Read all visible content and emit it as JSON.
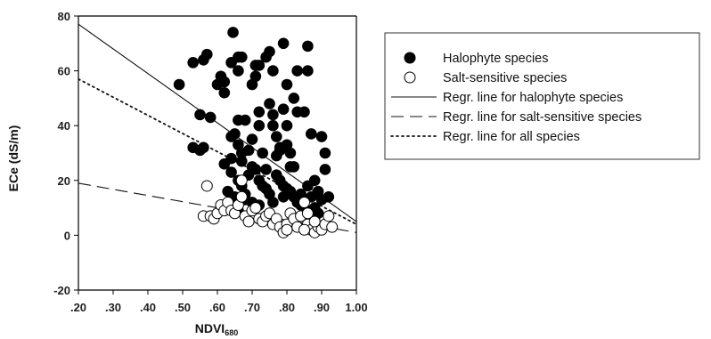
{
  "chart_data": {
    "type": "scatter",
    "xlabel": "NDVI",
    "xlabel_sub": "680",
    "ylabel": "ECe (dS/m)",
    "xlim": [
      0.2,
      1.0
    ],
    "ylim": [
      -20,
      80
    ],
    "x_ticks": [
      0.2,
      0.3,
      0.4,
      0.5,
      0.6,
      0.7,
      0.8,
      0.9,
      1.0
    ],
    "x_tick_labels": [
      ".20",
      ".30",
      ".40",
      ".50",
      ".60",
      ".70",
      ".80",
      ".90",
      "1.00"
    ],
    "y_ticks": [
      -20,
      0,
      20,
      40,
      60,
      80
    ],
    "y_tick_labels": [
      "-20",
      "0",
      "20",
      "40",
      "60",
      "80"
    ],
    "grid": false,
    "legend_position": "right",
    "legend": [
      {
        "label": "Halophyte species",
        "marker": "filled-circle"
      },
      {
        "label": "Salt-sensitive species",
        "marker": "open-circle"
      },
      {
        "label": "Regr. line for halophyte species",
        "marker": "solid-line"
      },
      {
        "label": "Regr. line for salt-sensitive species",
        "marker": "dashed-line"
      },
      {
        "label": "Regr. line for all species",
        "marker": "dotted-line"
      }
    ],
    "series": [
      {
        "name": "Halophyte species",
        "color": "#000000",
        "points": [
          [
            0.49,
            55
          ],
          [
            0.53,
            32
          ],
          [
            0.53,
            63
          ],
          [
            0.55,
            31
          ],
          [
            0.55,
            44
          ],
          [
            0.56,
            64
          ],
          [
            0.57,
            66
          ],
          [
            0.58,
            43
          ],
          [
            0.56,
            32
          ],
          [
            0.6,
            55
          ],
          [
            0.61,
            58
          ],
          [
            0.62,
            56
          ],
          [
            0.62,
            52
          ],
          [
            0.64,
            63
          ],
          [
            0.645,
            74
          ],
          [
            0.66,
            65
          ],
          [
            0.67,
            65
          ],
          [
            0.66,
            60
          ],
          [
            0.66,
            42
          ],
          [
            0.65,
            37
          ],
          [
            0.64,
            36
          ],
          [
            0.66,
            33
          ],
          [
            0.67,
            30
          ],
          [
            0.67,
            27
          ],
          [
            0.68,
            42
          ],
          [
            0.7,
            35
          ],
          [
            0.7,
            55
          ],
          [
            0.71,
            58
          ],
          [
            0.71,
            62
          ],
          [
            0.72,
            62
          ],
          [
            0.72,
            45
          ],
          [
            0.72,
            40
          ],
          [
            0.73,
            30
          ],
          [
            0.74,
            65
          ],
          [
            0.75,
            67
          ],
          [
            0.75,
            48
          ],
          [
            0.76,
            44
          ],
          [
            0.76,
            40
          ],
          [
            0.76,
            60
          ],
          [
            0.77,
            36
          ],
          [
            0.78,
            32
          ],
          [
            0.78,
            31
          ],
          [
            0.79,
            46
          ],
          [
            0.79,
            70
          ],
          [
            0.8,
            55
          ],
          [
            0.8,
            40
          ],
          [
            0.81,
            30
          ],
          [
            0.81,
            25
          ],
          [
            0.82,
            25
          ],
          [
            0.82,
            50
          ],
          [
            0.83,
            60
          ],
          [
            0.83,
            45
          ],
          [
            0.85,
            45
          ],
          [
            0.86,
            69
          ],
          [
            0.86,
            60
          ],
          [
            0.87,
            37
          ],
          [
            0.88,
            20
          ],
          [
            0.89,
            16
          ],
          [
            0.9,
            36
          ],
          [
            0.91,
            30
          ],
          [
            0.91,
            24
          ],
          [
            0.9,
            13
          ],
          [
            0.92,
            14
          ],
          [
            0.62,
            26
          ],
          [
            0.64,
            23
          ],
          [
            0.66,
            20
          ],
          [
            0.67,
            18
          ],
          [
            0.68,
            15
          ],
          [
            0.69,
            22
          ],
          [
            0.7,
            25
          ],
          [
            0.71,
            24
          ],
          [
            0.72,
            20
          ],
          [
            0.73,
            18
          ],
          [
            0.74,
            17
          ],
          [
            0.75,
            15
          ],
          [
            0.77,
            22
          ],
          [
            0.78,
            20
          ],
          [
            0.79,
            18
          ],
          [
            0.8,
            17
          ],
          [
            0.81,
            16
          ],
          [
            0.82,
            14
          ],
          [
            0.83,
            12
          ],
          [
            0.84,
            11
          ],
          [
            0.85,
            10
          ],
          [
            0.86,
            18
          ],
          [
            0.87,
            14
          ],
          [
            0.88,
            10
          ],
          [
            0.89,
            8
          ],
          [
            0.84,
            15
          ],
          [
            0.63,
            16
          ],
          [
            0.65,
            14
          ],
          [
            0.68,
            13
          ],
          [
            0.7,
            12
          ],
          [
            0.72,
            11
          ],
          [
            0.76,
            12
          ],
          [
            0.79,
            14
          ],
          [
            0.62,
            10
          ],
          [
            0.66,
            9
          ],
          [
            0.74,
            24
          ],
          [
            0.77,
            29
          ],
          [
            0.8,
            33
          ],
          [
            0.69,
            31
          ],
          [
            0.64,
            28
          ]
        ]
      },
      {
        "name": "Salt-sensitive species",
        "color": "#000000",
        "points": [
          [
            0.57,
            18
          ],
          [
            0.56,
            7
          ],
          [
            0.58,
            7
          ],
          [
            0.59,
            6
          ],
          [
            0.6,
            8
          ],
          [
            0.61,
            11
          ],
          [
            0.62,
            9
          ],
          [
            0.63,
            12
          ],
          [
            0.64,
            9
          ],
          [
            0.65,
            8
          ],
          [
            0.66,
            11
          ],
          [
            0.67,
            14
          ],
          [
            0.67,
            20
          ],
          [
            0.68,
            7
          ],
          [
            0.69,
            5
          ],
          [
            0.7,
            9
          ],
          [
            0.71,
            10
          ],
          [
            0.72,
            6
          ],
          [
            0.73,
            5
          ],
          [
            0.74,
            7
          ],
          [
            0.75,
            8
          ],
          [
            0.76,
            4
          ],
          [
            0.77,
            6
          ],
          [
            0.78,
            3
          ],
          [
            0.79,
            1
          ],
          [
            0.8,
            4
          ],
          [
            0.81,
            8
          ],
          [
            0.82,
            6
          ],
          [
            0.83,
            3
          ],
          [
            0.84,
            7
          ],
          [
            0.85,
            12
          ],
          [
            0.86,
            8
          ],
          [
            0.86,
            4
          ],
          [
            0.87,
            2
          ],
          [
            0.88,
            1
          ],
          [
            0.89,
            3
          ],
          [
            0.9,
            2
          ],
          [
            0.91,
            4
          ],
          [
            0.92,
            7
          ],
          [
            0.93,
            3
          ],
          [
            0.88,
            5
          ],
          [
            0.85,
            2
          ],
          [
            0.8,
            2
          ]
        ]
      }
    ],
    "regression_lines": [
      {
        "name": "Regr. line for halophyte species",
        "style": "solid",
        "x": [
          0.2,
          1.0
        ],
        "y": [
          77,
          5
        ]
      },
      {
        "name": "Regr. line for salt-sensitive species",
        "style": "dashed",
        "x": [
          0.2,
          1.0
        ],
        "y": [
          19,
          1
        ]
      },
      {
        "name": "Regr. line for all species",
        "style": "dotted",
        "x": [
          0.2,
          1.0
        ],
        "y": [
          57,
          4
        ]
      }
    ]
  }
}
